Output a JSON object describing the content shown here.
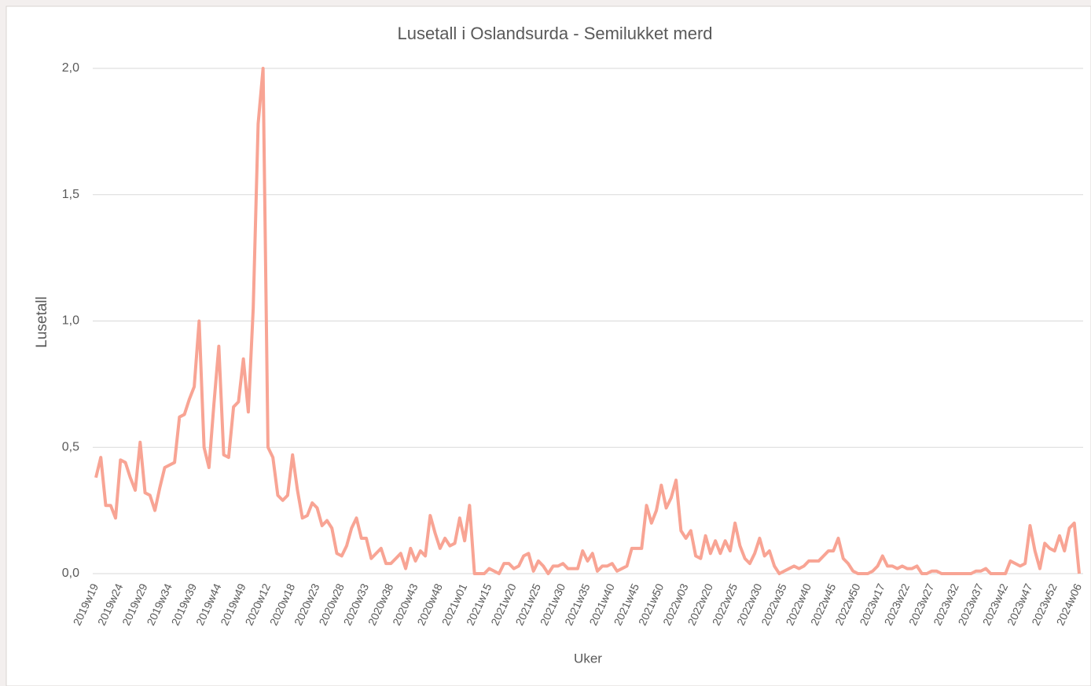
{
  "chart_data": {
    "type": "line",
    "title": "Lusetall i Oslandsurda - Semilukket merd",
    "x_label": "Uker",
    "y_label": "Lusetall",
    "color": "#f8a494",
    "grid": true,
    "ylim": [
      0,
      2
    ],
    "yticks": [
      {
        "value": 0,
        "label": "0,0"
      },
      {
        "value": 0.5,
        "label": "0,5"
      },
      {
        "value": 1,
        "label": "1,0"
      },
      {
        "value": 1.5,
        "label": "1,5"
      },
      {
        "value": 2,
        "label": "2,0"
      }
    ],
    "categories": [
      "2019w19",
      null,
      null,
      null,
      null,
      "2019w24",
      null,
      null,
      null,
      null,
      "2019w29",
      null,
      null,
      null,
      null,
      "2019w34",
      null,
      null,
      null,
      null,
      "2019w39",
      null,
      null,
      null,
      null,
      "2019w44",
      null,
      null,
      null,
      null,
      "2019w49",
      null,
      null,
      null,
      null,
      "2020w12",
      null,
      null,
      null,
      null,
      "2020w18",
      null,
      null,
      null,
      null,
      "2020w23",
      null,
      null,
      null,
      null,
      "2020w28",
      null,
      null,
      null,
      null,
      "2020w33",
      null,
      null,
      null,
      null,
      "2020w38",
      null,
      null,
      null,
      null,
      "2020w43",
      null,
      null,
      null,
      null,
      "2020w48",
      null,
      null,
      null,
      null,
      "2021w01",
      null,
      null,
      null,
      null,
      "2021w15",
      null,
      null,
      null,
      null,
      "2021w20",
      null,
      null,
      null,
      null,
      "2021w25",
      null,
      null,
      null,
      null,
      "2021w30",
      null,
      null,
      null,
      null,
      "2021w35",
      null,
      null,
      null,
      null,
      "2021w40",
      null,
      null,
      null,
      null,
      "2021w45",
      null,
      null,
      null,
      null,
      "2021w50",
      null,
      null,
      null,
      null,
      "2022w03",
      null,
      null,
      null,
      null,
      "2022w20",
      null,
      null,
      null,
      null,
      "2022w25",
      null,
      null,
      null,
      null,
      "2022w30",
      null,
      null,
      null,
      null,
      "2022w35",
      null,
      null,
      null,
      null,
      "2022w40",
      null,
      null,
      null,
      null,
      "2022w45",
      null,
      null,
      null,
      null,
      "2022w50",
      null,
      null,
      null,
      null,
      "2023w17",
      null,
      null,
      null,
      null,
      "2023w22",
      null,
      null,
      null,
      null,
      "2023w27",
      null,
      null,
      null,
      null,
      "2023w32",
      null,
      null,
      null,
      null,
      "2023w37",
      null,
      null,
      null,
      null,
      "2023w42",
      null,
      null,
      null,
      null,
      "2023w47",
      null,
      null,
      null,
      null,
      "2023w52",
      null,
      null,
      null,
      null,
      "2024w06"
    ],
    "values": [
      0.38,
      0.46,
      0.27,
      0.27,
      0.22,
      0.45,
      0.44,
      0.38,
      0.33,
      0.52,
      0.32,
      0.31,
      0.25,
      0.34,
      0.42,
      0.43,
      0.44,
      0.62,
      0.63,
      0.69,
      0.74,
      1.0,
      0.5,
      0.42,
      0.67,
      0.9,
      0.47,
      0.46,
      0.66,
      0.68,
      0.85,
      0.64,
      1.05,
      1.78,
      2.0,
      0.5,
      0.46,
      0.31,
      0.29,
      0.31,
      0.47,
      0.33,
      0.22,
      0.23,
      0.28,
      0.26,
      0.19,
      0.21,
      0.18,
      0.08,
      0.07,
      0.11,
      0.18,
      0.22,
      0.14,
      0.14,
      0.06,
      0.08,
      0.1,
      0.04,
      0.04,
      0.06,
      0.08,
      0.02,
      0.1,
      0.05,
      0.09,
      0.07,
      0.23,
      0.16,
      0.1,
      0.14,
      0.11,
      0.12,
      0.22,
      0.13,
      0.27,
      0.0,
      0.0,
      0.0,
      0.02,
      0.01,
      0.0,
      0.04,
      0.04,
      0.02,
      0.03,
      0.07,
      0.08,
      0.01,
      0.05,
      0.03,
      0.0,
      0.03,
      0.03,
      0.04,
      0.02,
      0.02,
      0.02,
      0.09,
      0.05,
      0.08,
      0.01,
      0.03,
      0.03,
      0.04,
      0.01,
      0.02,
      0.03,
      0.1,
      0.1,
      0.1,
      0.27,
      0.2,
      0.25,
      0.35,
      0.26,
      0.3,
      0.37,
      0.17,
      0.14,
      0.17,
      0.07,
      0.06,
      0.15,
      0.08,
      0.13,
      0.08,
      0.13,
      0.09,
      0.2,
      0.11,
      0.06,
      0.04,
      0.08,
      0.14,
      0.07,
      0.09,
      0.03,
      0.0,
      0.01,
      0.02,
      0.03,
      0.02,
      0.03,
      0.05,
      0.05,
      0.05,
      0.07,
      0.09,
      0.09,
      0.14,
      0.06,
      0.04,
      0.01,
      0.0,
      0.0,
      0.0,
      0.01,
      0.03,
      0.07,
      0.03,
      0.03,
      0.02,
      0.03,
      0.02,
      0.02,
      0.03,
      0.0,
      0.0,
      0.01,
      0.01,
      0.0,
      0.0,
      0.0,
      0.0,
      0.0,
      0.0,
      0.0,
      0.01,
      0.01,
      0.02,
      0.0,
      0.0,
      0.0,
      0.0,
      0.05,
      0.04,
      0.03,
      0.04,
      0.19,
      0.09,
      0.02,
      0.12,
      0.1,
      0.09,
      0.15,
      0.09,
      0.18,
      0.2,
      0.0
    ]
  }
}
